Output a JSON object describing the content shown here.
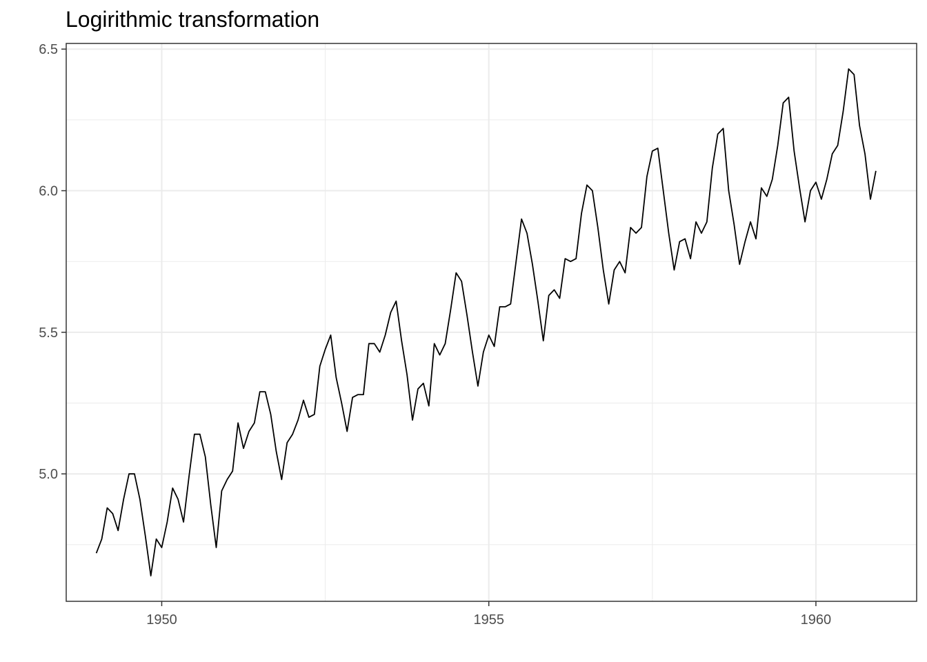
{
  "chart_data": {
    "type": "line",
    "title": "Logirithmic transformation",
    "xlabel": "",
    "ylabel": "",
    "x_start": 1949.0,
    "x_step_months": 1,
    "xlim": [
      1948.54,
      1961.54
    ],
    "ylim": [
      4.55,
      6.52
    ],
    "x_ticks": [
      1950,
      1955,
      1960
    ],
    "x_tick_labels": [
      "1950",
      "1955",
      "1960"
    ],
    "y_ticks": [
      5.0,
      5.5,
      6.0,
      6.5
    ],
    "y_tick_labels": [
      "5.0",
      "5.5",
      "6.0",
      "6.5"
    ],
    "grid": true,
    "legend": "none",
    "colors": {
      "line": "#000000",
      "grid": "#ebebeb",
      "panel_border": "#333333"
    },
    "series": [
      {
        "values": [
          4.72,
          4.77,
          4.88,
          4.86,
          4.8,
          4.91,
          5.0,
          5.0,
          4.91,
          4.78,
          4.64,
          4.77,
          4.74,
          4.83,
          4.95,
          4.91,
          4.83,
          4.99,
          5.14,
          5.14,
          5.06,
          4.89,
          4.74,
          4.94,
          4.98,
          5.01,
          5.18,
          5.09,
          5.15,
          5.18,
          5.29,
          5.29,
          5.21,
          5.08,
          4.98,
          5.11,
          5.14,
          5.19,
          5.26,
          5.2,
          5.21,
          5.38,
          5.44,
          5.49,
          5.34,
          5.25,
          5.15,
          5.27,
          5.28,
          5.28,
          5.46,
          5.46,
          5.43,
          5.49,
          5.57,
          5.61,
          5.47,
          5.35,
          5.19,
          5.3,
          5.32,
          5.24,
          5.46,
          5.42,
          5.46,
          5.58,
          5.71,
          5.68,
          5.56,
          5.43,
          5.31,
          5.43,
          5.49,
          5.45,
          5.59,
          5.59,
          5.6,
          5.75,
          5.9,
          5.85,
          5.74,
          5.61,
          5.47,
          5.63,
          5.65,
          5.62,
          5.76,
          5.75,
          5.76,
          5.92,
          6.02,
          6.0,
          5.87,
          5.72,
          5.6,
          5.72,
          5.75,
          5.71,
          5.87,
          5.85,
          5.87,
          6.05,
          6.14,
          6.15,
          6.0,
          5.85,
          5.72,
          5.82,
          5.83,
          5.76,
          5.89,
          5.85,
          5.89,
          6.08,
          6.2,
          6.22,
          6.0,
          5.88,
          5.74,
          5.82,
          5.89,
          5.83,
          6.01,
          5.98,
          6.04,
          6.16,
          6.31,
          6.33,
          6.14,
          6.01,
          5.89,
          6.0,
          6.03,
          5.97,
          6.04,
          6.13,
          6.16,
          6.28,
          6.43,
          6.41,
          6.23,
          6.13,
          5.97,
          6.07
        ]
      }
    ]
  }
}
